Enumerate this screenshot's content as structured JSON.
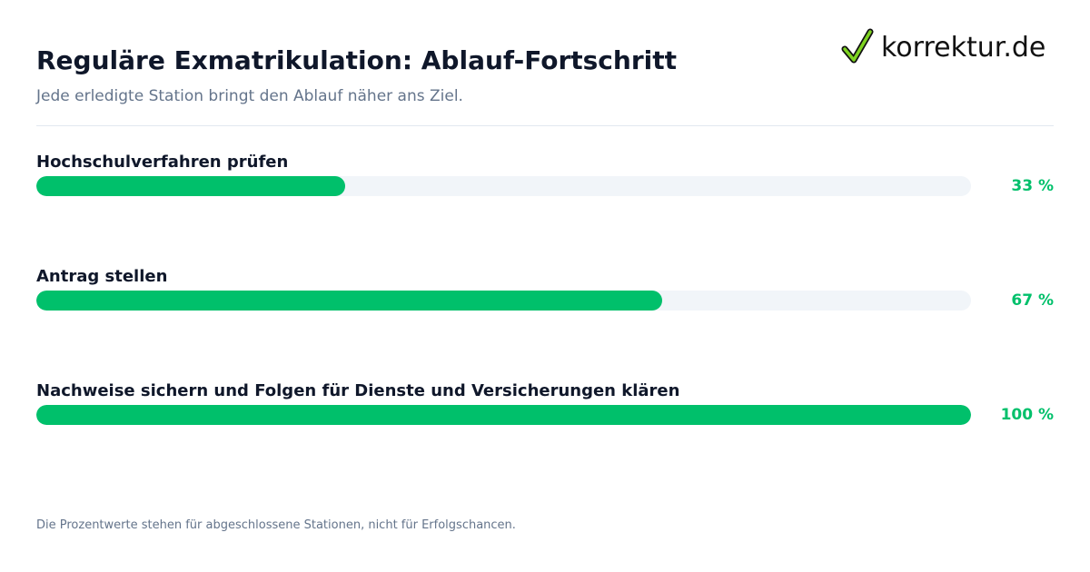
{
  "header": {
    "title": "Reguläre Exmatrikulation: Ablauf-Fortschritt",
    "subtitle": "Jede erledigte Station bringt den Ablauf näher ans Ziel."
  },
  "logo": {
    "text": "korrektur.de",
    "icon": "checkmark-icon"
  },
  "colors": {
    "accent": "#00c06b",
    "track": "#f1f5f9",
    "title": "#0f172a",
    "muted": "#64748b",
    "logo_check": "#7ed321"
  },
  "chart_data": {
    "type": "bar",
    "orientation": "horizontal",
    "categories": [
      "Hochschulverfahren prüfen",
      "Antrag stellen",
      "Nachweise sichern und Folgen für Dienste und Versicherungen klären"
    ],
    "values": [
      33,
      67,
      100
    ],
    "value_labels": [
      "33 %",
      "67 %",
      "100 %"
    ],
    "xlim": [
      0,
      100
    ],
    "title": "Reguläre Exmatrikulation: Ablauf-Fortschritt",
    "subtitle": "Jede erledigte Station bringt den Ablauf näher ans Ziel.",
    "grid": false
  },
  "footnote": "Die Prozentwerte stehen für abgeschlossene Stationen, nicht für Erfolgschancen."
}
